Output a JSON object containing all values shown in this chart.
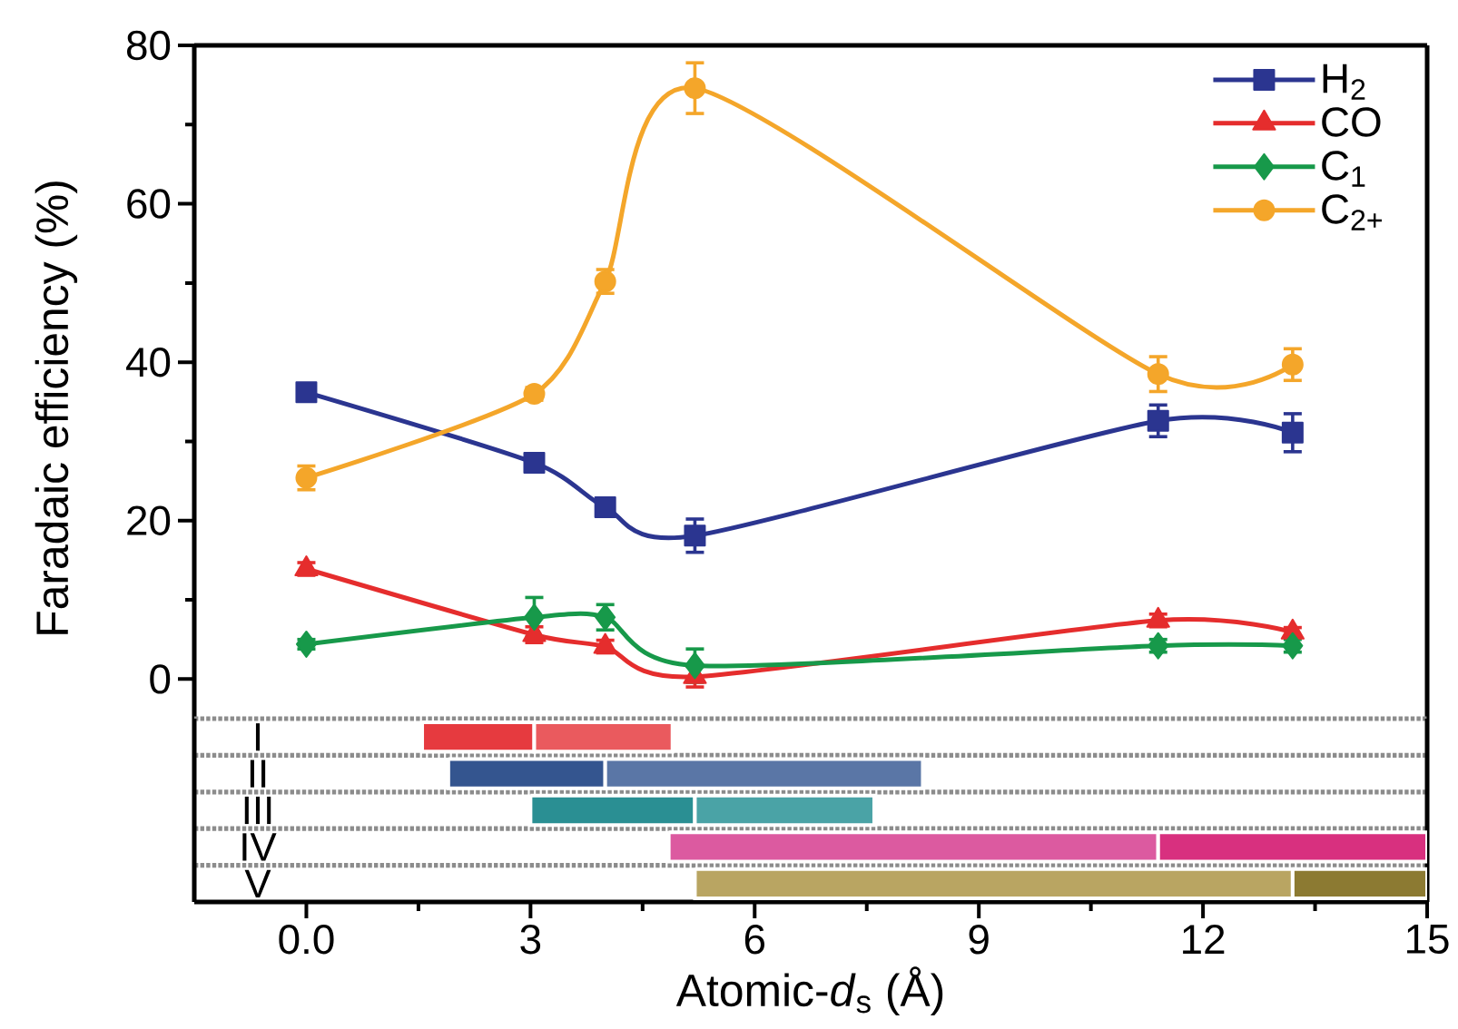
{
  "chart_data": [
    {
      "type": "line",
      "ylabel": "Faradaic efficiency (%)",
      "x": [
        0,
        3.05,
        4.0,
        5.2,
        11.4,
        13.2
      ],
      "series": [
        {
          "name": "H$_{2}$",
          "color": "#2b3590",
          "marker": "square",
          "values": [
            36.2,
            27.3,
            21.7,
            18.1,
            32.6,
            31.1
          ],
          "errors": [
            0.8,
            0.8,
            0.5,
            2.1,
            2.0,
            2.4
          ]
        },
        {
          "name": "CO",
          "color": "#e52d2d",
          "marker": "triangle",
          "values": [
            13.9,
            5.6,
            4.1,
            0.3,
            7.4,
            5.9
          ],
          "errors": [
            0.8,
            1.0,
            0.8,
            1.3,
            0.8,
            0.6
          ]
        },
        {
          "name": "C$_{1}$",
          "color": "#17994a",
          "marker": "diamond",
          "values": [
            4.4,
            7.8,
            7.8,
            1.7,
            4.2,
            4.2
          ],
          "errors": [
            0.6,
            2.5,
            1.6,
            2.1,
            0.8,
            0.8
          ]
        },
        {
          "name": "C$_{2+}$",
          "color": "#f4a62a",
          "marker": "circle",
          "values": [
            25.4,
            36.0,
            50.2,
            74.6,
            38.5,
            39.7
          ],
          "errors": [
            1.5,
            0.8,
            1.5,
            3.2,
            2.2,
            2.0
          ]
        }
      ],
      "xlim": [
        -1.5,
        15
      ],
      "ylim": [
        -5,
        80
      ],
      "yticks": [
        0,
        {
          "value": 10,
          "label": null
        },
        20,
        {
          "value": 30,
          "label": null
        },
        40,
        {
          "value": 50,
          "label": null
        },
        60,
        {
          "value": 70,
          "label": null
        },
        80
      ],
      "tick_labels": "y",
      "legend": "top right"
    },
    {
      "type": "bar",
      "orientation": "horizontal",
      "xlabel": "Atomic-*d*$_{s}$ (Å)",
      "categories": [
        "I",
        "II",
        "III",
        "IV",
        "V"
      ],
      "series": [
        {
          "colors": [
            "#e63a3f",
            "#34558f",
            "#2a8f93",
            "#dc5aa0",
            "#b9a562"
          ],
          "base": [
            1.55,
            1.9,
            3.0,
            4.85,
            5.2
          ],
          "values": [
            1.5,
            2.1,
            2.2,
            6.55,
            8.0
          ]
        },
        {
          "colors": [
            "#ea5a5e",
            "#5a76a6",
            "#4aa3a6",
            "#d8307f",
            "#8c7a32"
          ],
          "base": [
            3.05,
            4.0,
            5.2,
            11.4,
            13.2
          ],
          "values": [
            1.85,
            4.25,
            2.4,
            3.6,
            1.8
          ]
        }
      ],
      "xlim": [
        -1.5,
        15
      ],
      "xticks": [
        {
          "value": 0,
          "label": "0.0"
        },
        {
          "value": 1.5,
          "label": null
        },
        3,
        {
          "value": 4.5,
          "label": null
        },
        6,
        {
          "value": 7.5,
          "label": null
        },
        9,
        {
          "value": 10.5,
          "label": null
        },
        12,
        {
          "value": 13.5,
          "label": null
        },
        15
      ],
      "grid": "y"
    }
  ]
}
